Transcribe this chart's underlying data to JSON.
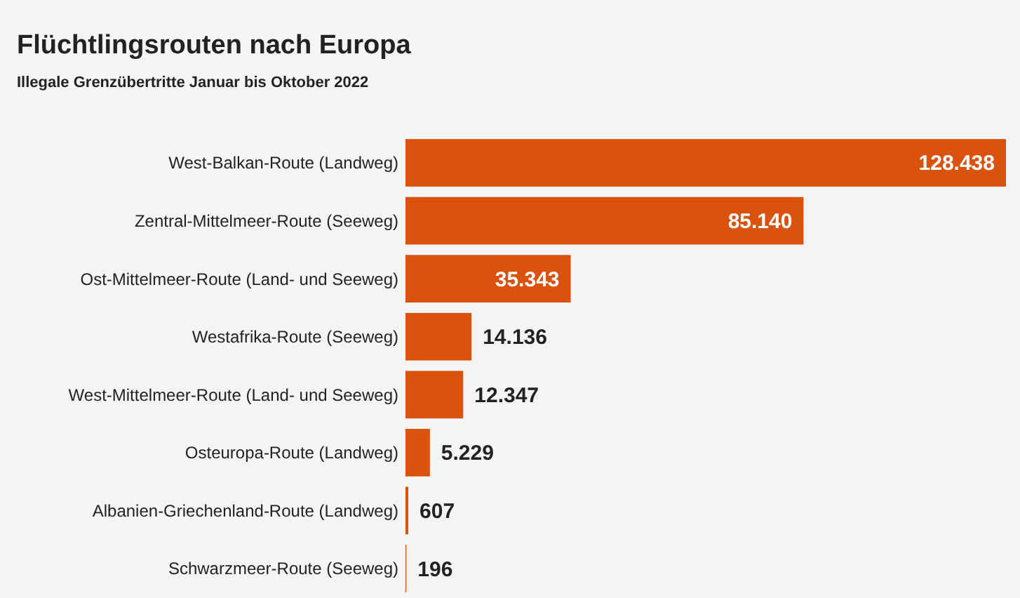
{
  "chart_data": {
    "type": "bar",
    "orientation": "horizontal",
    "title": "Flüchtlingsrouten nach Europa",
    "subtitle": "Illegale Grenzübertritte Januar bis Oktober 2022",
    "categories": [
      "West-Balkan-Route (Landweg)",
      "Zentral-Mittelmeer-Route (Seeweg)",
      "Ost-Mittelmeer-Route (Land- und Seeweg)",
      "Westafrika-Route (Seeweg)",
      "West-Mittelmeer-Route (Land- und Seeweg)",
      "Osteuropa-Route (Landweg)",
      "Albanien-Griechenland-Route (Landweg)",
      "Schwarzmeer-Route (Seeweg)"
    ],
    "values": [
      128438,
      85140,
      35343,
      14136,
      12347,
      5229,
      607,
      196
    ],
    "value_labels": [
      "128.438",
      "85.140",
      "35.343",
      "14.136",
      "12.347",
      "5.229",
      "607",
      "196"
    ],
    "color": "#d9530f"
  }
}
